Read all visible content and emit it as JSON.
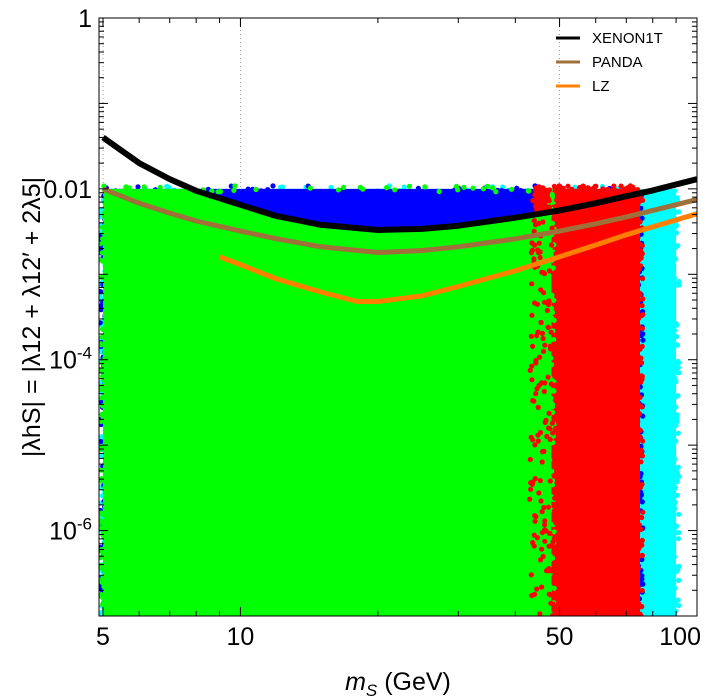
{
  "chart_data": {
    "type": "scatter",
    "title": "",
    "xlabel": {
      "var": "m",
      "sub": "S",
      "unit": " (GeV)"
    },
    "ylabel": "|λhS| = |λ12 + λ12′ + 2λ5|",
    "x_scale": "log",
    "y_scale": "log",
    "xlim": [
      4.9,
      100
    ],
    "ylim": [
      1e-07,
      1
    ],
    "grid": "dotted vertical lines at x = 5, 10, 50",
    "legend_position": "top-right",
    "x_ticks": [
      {
        "value": 5,
        "label": "5"
      },
      {
        "value": 10,
        "label": "10"
      },
      {
        "value": 50,
        "label": "50"
      },
      {
        "value": 100,
        "label": "100"
      }
    ],
    "y_ticks": [
      {
        "value": 1,
        "label": "1"
      },
      {
        "value": 0.01,
        "label": "0.01"
      },
      {
        "value": 0.0001,
        "label": "10",
        "sup": "-4"
      },
      {
        "value": 1e-06,
        "label": "10",
        "sup": "-6"
      }
    ],
    "scatter_regions": [
      {
        "color_name": "cyan",
        "color": "#00ffff",
        "x_range": [
          5,
          90
        ],
        "y_range": [
          1e-07,
          0.01
        ]
      },
      {
        "color_name": "blue",
        "color": "#0000ff",
        "x_range": [
          5,
          75
        ],
        "y_range": [
          1e-07,
          0.01
        ]
      },
      {
        "color_name": "red",
        "color": "#ff0000",
        "x_range": [
          44,
          75
        ],
        "y_range": [
          1e-07,
          0.01
        ]
      },
      {
        "color_name": "green",
        "color": "#00ff00",
        "x_range": [
          5,
          48
        ],
        "y_range": [
          1e-07,
          0.01
        ],
        "below_curve": "XENON1T"
      }
    ],
    "series": [
      {
        "name": "XENON1T",
        "color": "#000000",
        "x": [
          5,
          6,
          7,
          8,
          10,
          12,
          15,
          20,
          25,
          30,
          40,
          50,
          60,
          70,
          80,
          100
        ],
        "y": [
          0.04,
          0.02,
          0.013,
          0.0095,
          0.0065,
          0.0048,
          0.0038,
          0.0033,
          0.0034,
          0.0037,
          0.0046,
          0.0056,
          0.0068,
          0.0082,
          0.0096,
          0.013
        ]
      },
      {
        "name": "PANDA",
        "color": "#a0703a",
        "x": [
          5,
          6,
          7,
          8,
          10,
          12,
          15,
          20,
          25,
          30,
          40,
          50,
          60,
          70,
          80,
          100
        ],
        "y": [
          0.01,
          0.0068,
          0.0052,
          0.0042,
          0.0032,
          0.0026,
          0.0021,
          0.0018,
          0.0019,
          0.0021,
          0.0026,
          0.0032,
          0.0039,
          0.0047,
          0.0056,
          0.0075
        ]
      },
      {
        "name": "LZ",
        "color": "#ff8000",
        "x": [
          9,
          10,
          12,
          15,
          18,
          20,
          25,
          30,
          40,
          50,
          60,
          70,
          80,
          100
        ],
        "y": [
          0.0016,
          0.0013,
          0.00088,
          0.00062,
          0.00048,
          0.00048,
          0.00056,
          0.00072,
          0.0011,
          0.0016,
          0.0022,
          0.0029,
          0.0036,
          0.0051
        ]
      }
    ]
  }
}
